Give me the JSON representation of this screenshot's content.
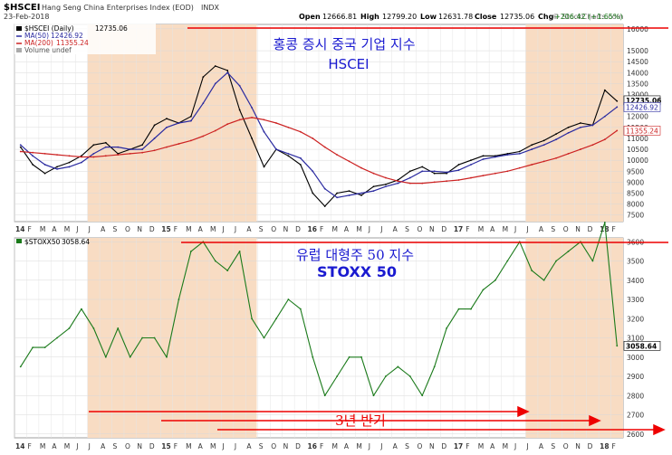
{
  "header": {
    "ticker": "$HSCEI",
    "description": "Hang Seng China Enterprises Index (EOD)",
    "exchange": "INDX",
    "date": "23-Feb-2018",
    "ohlc": {
      "open_label": "Open",
      "open": "12666.81",
      "high_label": "High",
      "high": "12799.20",
      "low_label": "Low",
      "low": "12631.78",
      "close_label": "Close",
      "close": "12735.06",
      "chg_label": "Chg",
      "chg": "+206.42 (+1.65%)"
    },
    "watermark": "© StockCharts.com"
  },
  "colors": {
    "highlight_band": "#f8dcc3",
    "price": "#000000",
    "ma50": "#2a2aa0",
    "ma200": "#cc2222",
    "stoxx": "#1a7a1a",
    "annotation_blue": "#1a1ad0",
    "annotation_red": "#ee0000"
  },
  "annotations": {
    "top_title_korean": "홍콩 증시 중국 기업 지수",
    "top_title_latin": "HSCEI",
    "bottom_title_korean": "유럽 대형주 50 지수",
    "bottom_title_latin": "STOXX 50",
    "period_note": "3년 반기"
  },
  "chart_data": [
    {
      "type": "line",
      "panel": "top",
      "title": "$HSCEI",
      "legend": [
        {
          "name": "$HSCEI (Daily)",
          "value": "12735.06"
        },
        {
          "name": "MA(50)",
          "value": "12426.92"
        },
        {
          "name": "MA(200)",
          "value": "11355.24"
        },
        {
          "name": "Volume undef",
          "value": ""
        }
      ],
      "price_labels": [
        "12735.06",
        "12426.92",
        "11355.24"
      ],
      "y_ticks": [
        7500,
        8000,
        8500,
        9000,
        9500,
        10000,
        10500,
        11000,
        11500,
        12000,
        12500,
        13000,
        13500,
        14000,
        14500,
        15000,
        16000
      ],
      "ylim": [
        7200,
        16200
      ],
      "x_ticks": [
        "14",
        "F",
        "M",
        "A",
        "M",
        "J",
        "J",
        "A",
        "S",
        "O",
        "N",
        "D",
        "15",
        "F",
        "M",
        "A",
        "M",
        "J",
        "J",
        "A",
        "S",
        "O",
        "N",
        "D",
        "16",
        "F",
        "M",
        "A",
        "M",
        "J",
        "J",
        "A",
        "S",
        "O",
        "N",
        "D",
        "17",
        "F",
        "M",
        "A",
        "M",
        "J",
        "J",
        "A",
        "S",
        "O",
        "N",
        "D",
        "18",
        "F"
      ],
      "x": [
        "2014-01",
        "2014-02",
        "2014-03",
        "2014-04",
        "2014-05",
        "2014-06",
        "2014-07",
        "2014-08",
        "2014-09",
        "2014-10",
        "2014-11",
        "2014-12",
        "2015-01",
        "2015-02",
        "2015-03",
        "2015-04",
        "2015-05",
        "2015-06",
        "2015-07",
        "2015-08",
        "2015-09",
        "2015-10",
        "2015-11",
        "2015-12",
        "2016-01",
        "2016-02",
        "2016-03",
        "2016-04",
        "2016-05",
        "2016-06",
        "2016-07",
        "2016-08",
        "2016-09",
        "2016-10",
        "2016-11",
        "2016-12",
        "2017-01",
        "2017-02",
        "2017-03",
        "2017-04",
        "2017-05",
        "2017-06",
        "2017-07",
        "2017-08",
        "2017-09",
        "2017-10",
        "2017-11",
        "2017-12",
        "2018-01",
        "2018-02"
      ],
      "series": [
        {
          "name": "$HSCEI (Daily)",
          "values": [
            10600,
            9800,
            9400,
            9700,
            9900,
            10200,
            10700,
            10800,
            10300,
            10500,
            10700,
            11600,
            11900,
            11700,
            12000,
            13800,
            14300,
            14100,
            12300,
            11000,
            9700,
            10500,
            10200,
            9800,
            8500,
            7900,
            8500,
            8600,
            8400,
            8800,
            8900,
            9100,
            9500,
            9700,
            9400,
            9400,
            9800,
            10000,
            10200,
            10200,
            10300,
            10400,
            10700,
            10900,
            11200,
            11500,
            11700,
            11600,
            13200,
            12700
          ]
        },
        {
          "name": "MA(50)",
          "values": [
            10700,
            10200,
            9800,
            9600,
            9700,
            9900,
            10300,
            10600,
            10600,
            10500,
            10500,
            11000,
            11500,
            11700,
            11800,
            12600,
            13500,
            14000,
            13400,
            12400,
            11300,
            10500,
            10300,
            10100,
            9500,
            8700,
            8300,
            8400,
            8500,
            8600,
            8800,
            8950,
            9200,
            9500,
            9500,
            9450,
            9550,
            9800,
            10050,
            10150,
            10250,
            10300,
            10500,
            10700,
            10950,
            11250,
            11500,
            11600,
            12000,
            12430
          ]
        },
        {
          "name": "MA(200)",
          "values": [
            10400,
            10350,
            10300,
            10250,
            10200,
            10150,
            10150,
            10200,
            10250,
            10300,
            10350,
            10450,
            10600,
            10750,
            10900,
            11100,
            11350,
            11650,
            11850,
            11950,
            11850,
            11700,
            11500,
            11300,
            11000,
            10600,
            10250,
            9950,
            9650,
            9400,
            9200,
            9050,
            8950,
            8950,
            9000,
            9050,
            9100,
            9200,
            9300,
            9400,
            9500,
            9650,
            9800,
            9950,
            10100,
            10300,
            10500,
            10700,
            10950,
            11355
          ]
        }
      ]
    },
    {
      "type": "line",
      "panel": "bottom",
      "title": "$STOXX50",
      "legend": [
        {
          "name": "$STOXX50",
          "value": "3058.64"
        }
      ],
      "price_labels": [
        "3058.64"
      ],
      "y_ticks": [
        2600,
        2700,
        2800,
        2900,
        3000,
        3100,
        3200,
        3300,
        3400,
        3500,
        3600
      ],
      "ylim": [
        2580,
        3620
      ],
      "x_ticks": [
        "14",
        "F",
        "M",
        "A",
        "M",
        "J",
        "J",
        "A",
        "S",
        "O",
        "N",
        "D",
        "15",
        "F",
        "M",
        "A",
        "M",
        "J",
        "J",
        "A",
        "S",
        "O",
        "N",
        "D",
        "16",
        "F",
        "M",
        "A",
        "M",
        "J",
        "J",
        "A",
        "S",
        "O",
        "N",
        "D",
        "17",
        "F",
        "M",
        "A",
        "M",
        "J",
        "J",
        "A",
        "S",
        "O",
        "N",
        "D",
        "18",
        "F"
      ],
      "x": [
        "2014-01",
        "2014-02",
        "2014-03",
        "2014-04",
        "2014-05",
        "2014-06",
        "2014-07",
        "2014-08",
        "2014-09",
        "2014-10",
        "2014-11",
        "2014-12",
        "2015-01",
        "2015-02",
        "2015-03",
        "2015-04",
        "2015-05",
        "2015-06",
        "2015-07",
        "2015-08",
        "2015-09",
        "2015-10",
        "2015-11",
        "2015-12",
        "2016-01",
        "2016-02",
        "2016-03",
        "2016-04",
        "2016-05",
        "2016-06",
        "2016-07",
        "2016-08",
        "2016-09",
        "2016-10",
        "2016-11",
        "2016-12",
        "2017-01",
        "2017-02",
        "2017-03",
        "2017-04",
        "2017-05",
        "2017-06",
        "2017-07",
        "2017-08",
        "2017-09",
        "2017-10",
        "2017-11",
        "2017-12",
        "2018-01",
        "2018-02"
      ],
      "series": [
        {
          "name": "$STOXX50",
          "values": [
            2950,
            3050,
            3050,
            3100,
            3150,
            3250,
            3150,
            3000,
            3150,
            3000,
            3100,
            3100,
            3000,
            3300,
            3550,
            3600,
            3500,
            3450,
            3550,
            3200,
            3100,
            3200,
            3300,
            3250,
            3000,
            2800,
            2900,
            3000,
            3000,
            2800,
            2900,
            2950,
            2900,
            2800,
            2950,
            3150,
            3250,
            3250,
            3350,
            3400,
            3500,
            3600,
            3450,
            3400,
            3500,
            3550,
            3600,
            3500,
            3700,
            3058.64
          ]
        }
      ],
      "series_note": "values approximate; see panel y-axis"
    }
  ]
}
